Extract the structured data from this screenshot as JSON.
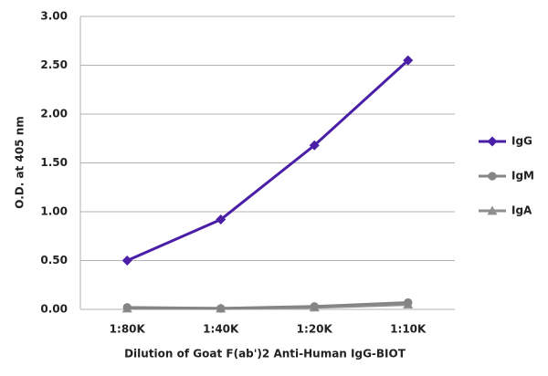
{
  "chart_data": {
    "type": "line",
    "x_label": "Dilution of Goat F(ab')2 Anti-Human IgG-BIOT",
    "y_label": "O.D. at 405 nm",
    "categories": [
      "1:80K",
      "1:40K",
      "1:20K",
      "1:10K"
    ],
    "series": [
      {
        "name": "IgG",
        "color": "#4a1ea6",
        "marker": "diamond",
        "values": [
          0.5,
          0.92,
          1.68,
          2.55
        ]
      },
      {
        "name": "IgM",
        "color": "#858585",
        "marker": "circle",
        "values": [
          0.02,
          0.01,
          0.03,
          0.07
        ]
      },
      {
        "name": "IgA",
        "color": "#8f8f8f",
        "marker": "triangle",
        "values": [
          0.01,
          0.01,
          0.02,
          0.05
        ]
      }
    ],
    "ylim": [
      0,
      3
    ],
    "yticks": [
      {
        "value": 0,
        "label": "0.00"
      },
      {
        "value": 0.5,
        "label": "0.50"
      },
      {
        "value": 1,
        "label": "1.00"
      },
      {
        "value": 1.5,
        "label": "1.50"
      },
      {
        "value": 2,
        "label": "2.00"
      },
      {
        "value": 2.5,
        "label": "2.50"
      },
      {
        "value": 3,
        "label": "3.00"
      }
    ],
    "grid": true
  }
}
